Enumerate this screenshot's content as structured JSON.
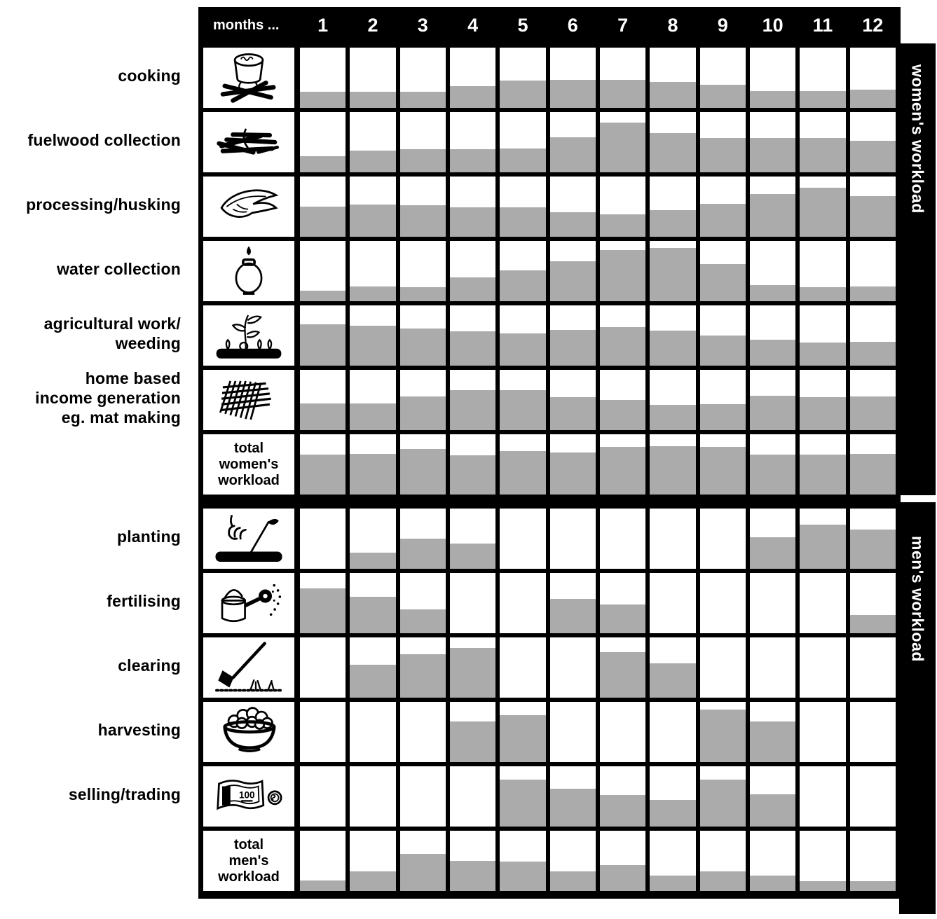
{
  "header": {
    "months_label": "months ...",
    "months": [
      "1",
      "2",
      "3",
      "4",
      "5",
      "6",
      "7",
      "8",
      "9",
      "10",
      "11",
      "12"
    ]
  },
  "colors": {
    "bar_fill": "#ababab",
    "grid_line": "#000000",
    "header_bg": "#000000",
    "header_text": "#ffffff",
    "cell_bg": "#ffffff"
  },
  "icon_text": {
    "banknote_value": "100"
  },
  "chart_data": {
    "type": "heatmap",
    "x_header_label": "months ...",
    "x": [
      "1",
      "2",
      "3",
      "4",
      "5",
      "6",
      "7",
      "8",
      "9",
      "10",
      "11",
      "12"
    ],
    "xlabel": "months",
    "ylim": [
      0,
      1
    ],
    "value_meaning": "relative workload per month, read as fraction of cell height filled grey",
    "legend_position": "right-vertical-strips",
    "grid": true,
    "groups": [
      {
        "name": "women's workload",
        "rows": [
          {
            "label": "cooking",
            "icon": "cooking-pot-fire-icon",
            "total": false,
            "values": [
              0.27,
              0.27,
              0.27,
              0.36,
              0.45,
              0.47,
              0.47,
              0.43,
              0.38,
              0.28,
              0.28,
              0.3
            ]
          },
          {
            "label": "fuelwood collection",
            "icon": "fuelwood-bundle-icon",
            "total": false,
            "values": [
              0.27,
              0.36,
              0.38,
              0.38,
              0.39,
              0.58,
              0.82,
              0.65,
              0.57,
              0.57,
              0.57,
              0.52
            ]
          },
          {
            "label": "processing/husking",
            "icon": "corn-husk-icon",
            "total": false,
            "values": [
              0.5,
              0.53,
              0.52,
              0.49,
              0.49,
              0.41,
              0.37,
              0.44,
              0.55,
              0.71,
              0.81,
              0.68
            ]
          },
          {
            "label": "water collection",
            "icon": "water-jar-icon",
            "total": false,
            "values": [
              0.17,
              0.24,
              0.23,
              0.4,
              0.51,
              0.66,
              0.85,
              0.88,
              0.62,
              0.27,
              0.23,
              0.24
            ]
          },
          {
            "label": "agricultural work/\nweeding",
            "icon": "weeding-plant-icon",
            "total": false,
            "values": [
              0.69,
              0.66,
              0.62,
              0.57,
              0.53,
              0.59,
              0.64,
              0.58,
              0.5,
              0.43,
              0.38,
              0.4
            ]
          },
          {
            "label": "home based\nincome generation\neg. mat making",
            "icon": "mat-weaving-icon",
            "total": false,
            "values": [
              0.44,
              0.44,
              0.56,
              0.66,
              0.66,
              0.55,
              0.5,
              0.42,
              0.43,
              0.57,
              0.55,
              0.56
            ]
          },
          {
            "label": "total\nwomen's\nworkload",
            "icon": null,
            "total": true,
            "values": [
              0.66,
              0.67,
              0.76,
              0.65,
              0.72,
              0.7,
              0.79,
              0.8,
              0.79,
              0.66,
              0.66,
              0.67
            ]
          }
        ]
      },
      {
        "name": "men's workload",
        "rows": [
          {
            "label": "planting",
            "icon": "planting-hand-icon",
            "total": false,
            "values": [
              0,
              0.27,
              0.5,
              0.42,
              0,
              0,
              0,
              0,
              0,
              0.52,
              0.73,
              0.65
            ]
          },
          {
            "label": "fertilising",
            "icon": "watering-can-icon",
            "total": false,
            "values": [
              0.74,
              0.6,
              0.4,
              0,
              0,
              0.57,
              0.48,
              0,
              0,
              0,
              0,
              0.3
            ]
          },
          {
            "label": "clearing",
            "icon": "hoe-clearing-icon",
            "total": false,
            "values": [
              0,
              0.55,
              0.72,
              0.83,
              0,
              0,
              0.76,
              0.57,
              0,
              0,
              0,
              0
            ]
          },
          {
            "label": "harvesting",
            "icon": "harvest-basket-icon",
            "total": false,
            "values": [
              0,
              0,
              0,
              0.68,
              0.78,
              0,
              0,
              0,
              0.87,
              0.67,
              0,
              0
            ]
          },
          {
            "label": "selling/trading",
            "icon": "banknote-coin-icon",
            "total": false,
            "values": [
              0,
              0,
              0,
              0,
              0.78,
              0.63,
              0.52,
              0.44,
              0.78,
              0.54,
              0,
              0
            ]
          },
          {
            "label": "total\nmen's\nworkload",
            "icon": null,
            "total": true,
            "values": [
              0.17,
              0.33,
              0.62,
              0.5,
              0.49,
              0.33,
              0.43,
              0.26,
              0.33,
              0.26,
              0.16,
              0.16
            ]
          }
        ]
      }
    ]
  }
}
